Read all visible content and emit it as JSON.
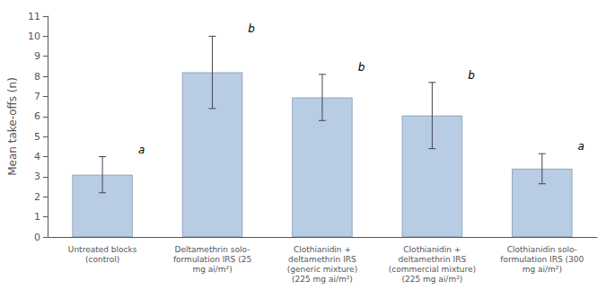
{
  "chart_data": {
    "type": "bar",
    "categories": [
      "Untreated blocks\n(control)",
      "Deltamethrin solo-\nformulation IRS (25\nmg ai/m²)",
      "Clothianidin +\ndeltamethrin IRS\n(generic mixture)\n(225 mg ai/m²)",
      "Clothianidin +\ndeltamethrin IRS\n(commercial mixture)\n(225 mg ai/m²)",
      "Clothianidin solo-\nformulation IRS (300\nmg ai/m²)"
    ],
    "values": [
      3.1,
      8.2,
      6.95,
      6.05,
      3.4
    ],
    "errors": [
      0.9,
      1.8,
      1.15,
      1.65,
      0.75
    ],
    "annotations": [
      "a",
      "b",
      "b",
      "b",
      "a"
    ],
    "color": "#b8cce4",
    "ylabel": "Mean take-offs (n)",
    "ylim": [
      0,
      11
    ],
    "yticks": [
      0,
      1,
      2,
      3,
      4,
      5,
      6,
      7,
      8,
      9,
      10,
      11
    ],
    "grid": false
  }
}
